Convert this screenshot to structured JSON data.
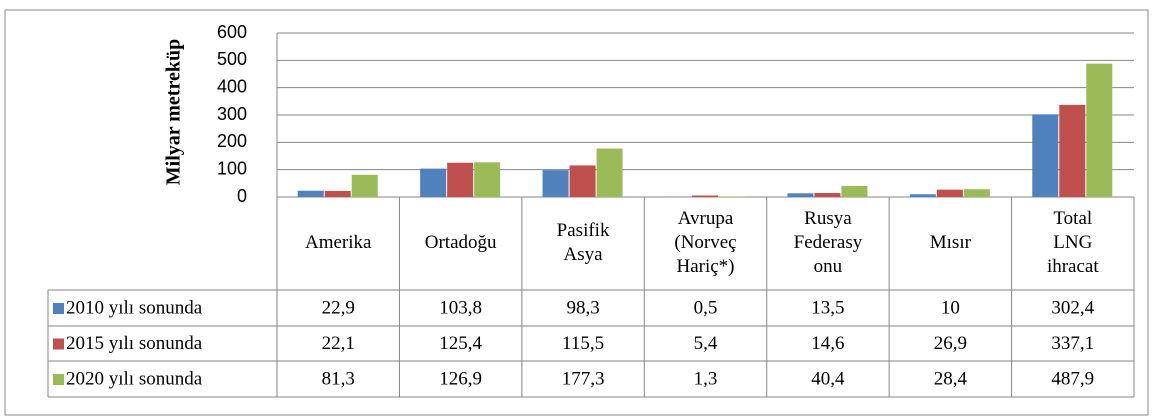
{
  "chart_data": {
    "type": "bar",
    "y_label": "Milyar metreküp",
    "categories": [
      [
        "Amerika"
      ],
      [
        "Ortadoğu"
      ],
      [
        "Pasifik",
        "Asya"
      ],
      [
        "Avrupa",
        "(Norveç",
        "Hariç*)"
      ],
      [
        "Rusya",
        "Federasy",
        "onu"
      ],
      [
        "Mısır"
      ],
      [
        "Total",
        "LNG",
        "ihracat"
      ]
    ],
    "series": [
      {
        "name": "2010 yılı sonunda",
        "color": "#4f81bd",
        "values": [
          22.9,
          103.8,
          98.3,
          0.5,
          13.5,
          10,
          302.4
        ],
        "value_labels": [
          "22,9",
          "103,8",
          "98,3",
          "0,5",
          "13,5",
          "10",
          "302,4"
        ]
      },
      {
        "name": "2015 yılı sonunda",
        "color": "#c0504d",
        "values": [
          22.1,
          125.4,
          115.5,
          5.4,
          14.6,
          26.9,
          337.1
        ],
        "value_labels": [
          "22,1",
          "125,4",
          "115,5",
          "5,4",
          "14,6",
          "26,9",
          "337,1"
        ]
      },
      {
        "name": "2020 yılı sonunda",
        "color": "#9bbb59",
        "values": [
          81.3,
          126.9,
          177.3,
          1.3,
          40.4,
          28.4,
          487.9
        ],
        "value_labels": [
          "81,3",
          "126,9",
          "177,3",
          "1,3",
          "40,4",
          "28,4",
          "487,9"
        ]
      }
    ],
    "ylim": [
      0,
      600
    ],
    "yticks": [
      0,
      100,
      200,
      300,
      400,
      500,
      600
    ],
    "grid": true
  }
}
